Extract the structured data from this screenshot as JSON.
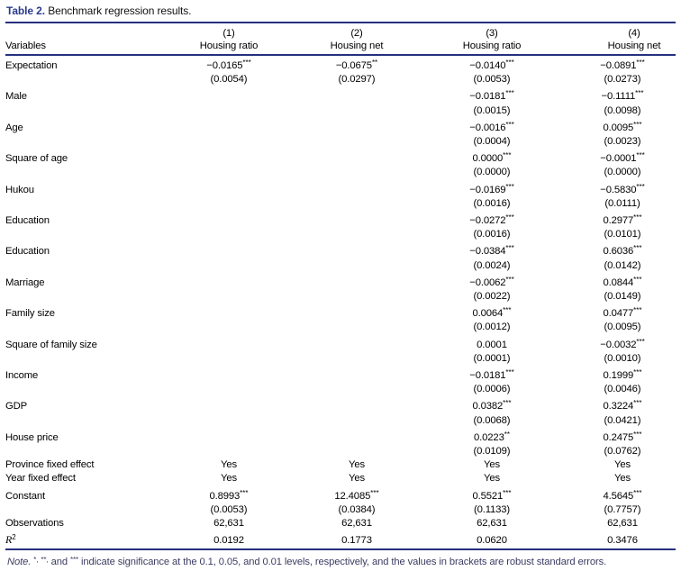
{
  "title": {
    "label": "Table 2.",
    "text": "Benchmark regression results."
  },
  "table": {
    "variables_header": "Variables",
    "col_numbers": [
      "(1)",
      "(2)",
      "(3)",
      "(4)"
    ],
    "col_titles": [
      "Housing ratio",
      "Housing net",
      "Housing ratio",
      "Housing net"
    ],
    "rows": [
      {
        "label": "Expectation",
        "cells": [
          {
            "v": "−0.0165",
            "stars": "***",
            "se": "(0.0054)"
          },
          {
            "v": "−0.0675",
            "stars": "**",
            "se": "(0.0297)"
          },
          {
            "v": "−0.0140",
            "stars": "***",
            "se": "(0.0053)"
          },
          {
            "v": "−0.0891",
            "stars": "***",
            "se": "(0.0273)"
          }
        ]
      },
      {
        "label": "Male",
        "cells": [
          null,
          null,
          {
            "v": "−0.0181",
            "stars": "***",
            "se": "(0.0015)"
          },
          {
            "v": "−0.1111",
            "stars": "***",
            "se": "(0.0098)"
          }
        ]
      },
      {
        "label": "Age",
        "cells": [
          null,
          null,
          {
            "v": "−0.0016",
            "stars": "***",
            "se": "(0.0004)"
          },
          {
            "v": "0.0095",
            "stars": "***",
            "se": "(0.0023)"
          }
        ]
      },
      {
        "label": "Square of age",
        "cells": [
          null,
          null,
          {
            "v": "0.0000",
            "stars": "***",
            "se": "(0.0000)"
          },
          {
            "v": "−0.0001",
            "stars": "***",
            "se": "(0.0000)"
          }
        ]
      },
      {
        "label": "Hukou",
        "cells": [
          null,
          null,
          {
            "v": "−0.0169",
            "stars": "***",
            "se": "(0.0016)"
          },
          {
            "v": "−0.5830",
            "stars": "***",
            "se": "(0.0111)"
          }
        ]
      },
      {
        "label": "Education",
        "cells": [
          null,
          null,
          {
            "v": "−0.0272",
            "stars": "***",
            "se": "(0.0016)"
          },
          {
            "v": "0.2977",
            "stars": "***",
            "se": "(0.0101)"
          }
        ]
      },
      {
        "label": "Education",
        "cells": [
          null,
          null,
          {
            "v": "−0.0384",
            "stars": "***",
            "se": "(0.0024)"
          },
          {
            "v": "0.6036",
            "stars": "***",
            "se": "(0.0142)"
          }
        ]
      },
      {
        "label": "Marriage",
        "cells": [
          null,
          null,
          {
            "v": "−0.0062",
            "stars": "***",
            "se": "(0.0022)"
          },
          {
            "v": "0.0844",
            "stars": "***",
            "se": "(0.0149)"
          }
        ]
      },
      {
        "label": "Family size",
        "cells": [
          null,
          null,
          {
            "v": "0.0064",
            "stars": "***",
            "se": "(0.0012)"
          },
          {
            "v": "0.0477",
            "stars": "***",
            "se": "(0.0095)"
          }
        ]
      },
      {
        "label": "Square of family size",
        "cells": [
          null,
          null,
          {
            "v": "0.0001",
            "stars": "",
            "se": "(0.0001)"
          },
          {
            "v": "−0.0032",
            "stars": "***",
            "se": "(0.0010)"
          }
        ]
      },
      {
        "label": "Income",
        "cells": [
          null,
          null,
          {
            "v": "−0.0181",
            "stars": "***",
            "se": "(0.0006)"
          },
          {
            "v": "0.1999",
            "stars": "***",
            "se": "(0.0046)"
          }
        ]
      },
      {
        "label": "GDP",
        "cells": [
          null,
          null,
          {
            "v": "0.0382",
            "stars": "***",
            "se": "(0.0068)"
          },
          {
            "v": "0.3224",
            "stars": "***",
            "se": "(0.0421)"
          }
        ]
      },
      {
        "label": "House price",
        "cells": [
          null,
          null,
          {
            "v": "0.0223",
            "stars": "**",
            "se": "(0.0109)"
          },
          {
            "v": "0.2475",
            "stars": "***",
            "se": "(0.0762)"
          }
        ]
      },
      {
        "label": "Province fixed effect",
        "single": [
          "Yes",
          "Yes",
          "Yes",
          "Yes"
        ]
      },
      {
        "label": "Year fixed effect",
        "single": [
          "Yes",
          "Yes",
          "Yes",
          "Yes"
        ]
      },
      {
        "label": "Constant",
        "cells": [
          {
            "v": "0.8993",
            "stars": "***",
            "se": "(0.0053)"
          },
          {
            "v": "12.4085",
            "stars": "***",
            "se": "(0.0384)"
          },
          {
            "v": "0.5521",
            "stars": "***",
            "se": "(0.1133)"
          },
          {
            "v": "4.5645",
            "stars": "***",
            "se": "(0.7757)"
          }
        ]
      },
      {
        "label": "Observations",
        "single": [
          "62,631",
          "62,631",
          "62,631",
          "62,631"
        ]
      },
      {
        "label": "R",
        "label_sup": "2",
        "single": [
          "0.0192",
          "0.1773",
          "0.0620",
          "0.3476"
        ]
      }
    ]
  },
  "note": {
    "segments": [
      {
        "t": "Note.",
        "style": "italic"
      },
      {
        "t": " "
      },
      {
        "t": "*,",
        "style": "sup"
      },
      {
        "t": " "
      },
      {
        "t": "**,",
        "style": "sup"
      },
      {
        "t": " and "
      },
      {
        "t": "***",
        "style": "sup"
      },
      {
        "t": " indicate significance at the 0.1, 0.05, and 0.01 levels, respectively, and the values in brackets are robust standard errors."
      }
    ]
  },
  "colors": {
    "accent_navy": "#2b3a8f",
    "rule_navy": "#25307e",
    "note_text": "#3b3b63"
  }
}
